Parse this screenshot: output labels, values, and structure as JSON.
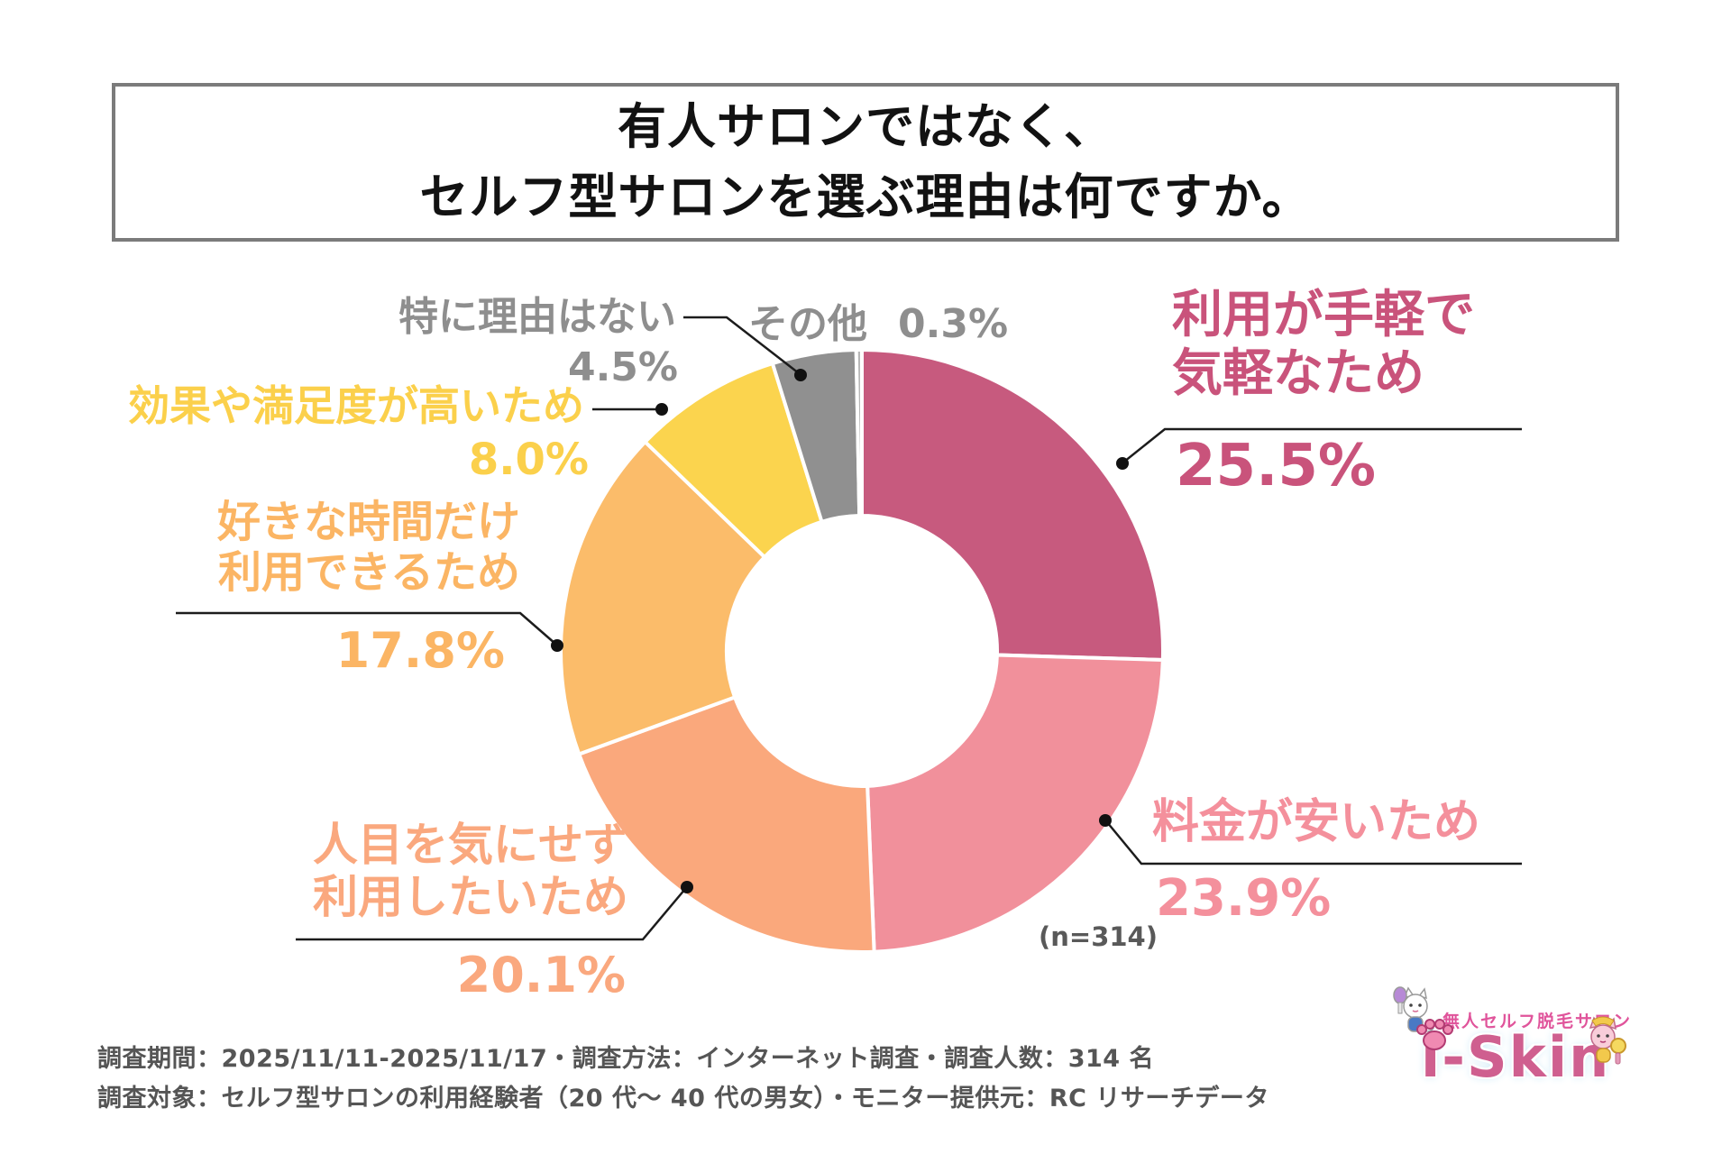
{
  "title": {
    "line1": "有人サロンではなく、",
    "line2": "セルフ型サロンを選ぶ理由は何ですか。"
  },
  "chart_data": {
    "type": "pie",
    "donut": true,
    "title": "有人サロンではなく、セルフ型サロンを選ぶ理由は何ですか。",
    "n": 314,
    "n_label": "(n=314)",
    "slices": [
      {
        "label": "利用が手軽で気軽なため",
        "value": 25.5,
        "color": "#c75a7e"
      },
      {
        "label": "料金が安いため",
        "value": 23.9,
        "color": "#f1909b"
      },
      {
        "label": "人目を気にせず利用したいため",
        "value": 20.1,
        "color": "#faa87c"
      },
      {
        "label": "好きな時間だけ利用できるため",
        "value": 17.8,
        "color": "#fbbc6a"
      },
      {
        "label": "効果や満足度が高いため",
        "value": 8.0,
        "color": "#fbd44e"
      },
      {
        "label": "特に理由はない",
        "value": 4.5,
        "color": "#909090"
      },
      {
        "label": "その他",
        "value": 0.3,
        "color": "#b7b7b7"
      }
    ]
  },
  "callouts": [
    {
      "lines": [
        "利用が手軽で",
        "気軽なため"
      ],
      "pct": "25.5%",
      "color": "#c9537b"
    },
    {
      "lines": [
        "料金が安いため"
      ],
      "pct": "23.9%",
      "color": "#f4909c"
    },
    {
      "lines": [
        "人目を気にせず",
        "利用したいため"
      ],
      "pct": "20.1%",
      "color": "#faa87e"
    },
    {
      "lines": [
        "好きな時間だけ",
        "利用できるため"
      ],
      "pct": "17.8%",
      "color": "#fbb564"
    },
    {
      "lines": [
        "効果や満足度が高いため"
      ],
      "pct": "8.0%",
      "color": "#fbd04b"
    },
    {
      "lines": [
        "特に理由はない"
      ],
      "pct": "4.5%",
      "color": "#8e8e8e"
    },
    {
      "lines": [
        "その他"
      ],
      "pct": "0.3%",
      "color": "#8e8e8e"
    }
  ],
  "footer": {
    "line1": "調査期間：2025/11/11-2025/11/17・調査方法：インターネット調査・調査人数：314 名",
    "line2": "調査対象：セルフ型サロンの利用経験者（20 代〜 40 代の男女）・モニター提供元：RC リサーチデータ"
  },
  "logo": {
    "tagline": "無人セルフ脱毛サロン",
    "brand": "i-Skin"
  }
}
